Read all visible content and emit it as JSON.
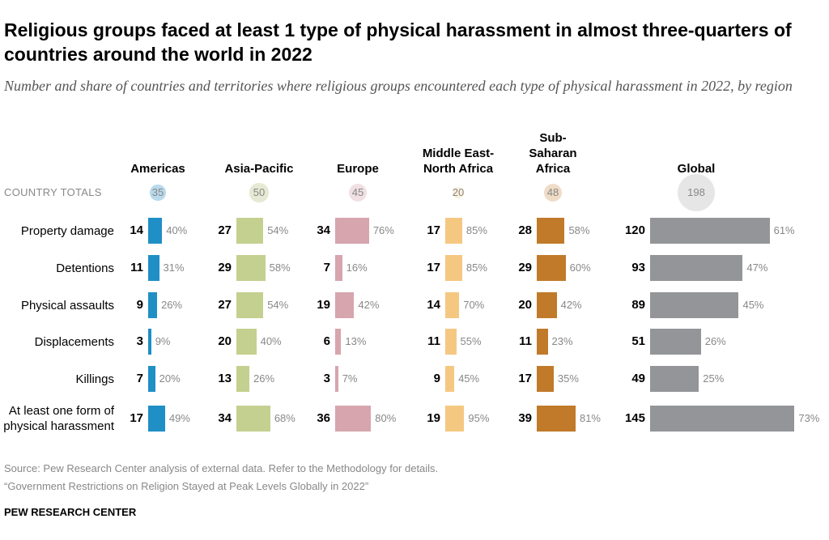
{
  "chart_data": {
    "type": "bar",
    "title": "Religious groups faced at least 1 type of physical harassment in almost three-quarters of countries around the world in 2022",
    "subtitle": "Number and share of countries and territories where religious groups encountered each type of physical harassment in 2022, by region",
    "totals_label": "COUNTRY TOTALS",
    "categories": [
      "Property damage",
      "Detentions",
      "Physical assaults",
      "Displacements",
      "Killings",
      "At least one form of physical harassment"
    ],
    "series": [
      {
        "name": "Americas",
        "color": "#1f8fc6",
        "total": 35,
        "total_color": "#b9d9ec",
        "values": [
          14,
          11,
          9,
          3,
          7,
          17
        ],
        "share_labels": [
          "40%",
          "31%",
          "26%",
          "9%",
          "20%",
          "49%"
        ]
      },
      {
        "name": "Asia-Pacific",
        "color": "#c4d08f",
        "total": 50,
        "total_color": "#e6e9d3",
        "values": [
          27,
          29,
          27,
          20,
          13,
          34
        ],
        "share_labels": [
          "54%",
          "58%",
          "54%",
          "40%",
          "26%",
          "68%"
        ]
      },
      {
        "name": "Europe",
        "color": "#d6a5ae",
        "total": 45,
        "total_color": "#f0e0e3",
        "values": [
          34,
          7,
          19,
          6,
          3,
          36
        ],
        "share_labels": [
          "76%",
          "16%",
          "42%",
          "13%",
          "7%",
          "80%"
        ]
      },
      {
        "name": "Middle East-North Africa",
        "color": "#f5c882",
        "total": 20,
        "total_color": "#fcf0dc",
        "values": [
          17,
          17,
          14,
          11,
          9,
          19
        ],
        "share_labels": [
          "85%",
          "85%",
          "70%",
          "55%",
          "45%",
          "95%"
        ]
      },
      {
        "name": "Sub-Saharan Africa",
        "color": "#c07a2a",
        "total": 48,
        "total_color": "#efdcc7",
        "values": [
          28,
          29,
          20,
          11,
          17,
          39
        ],
        "share_labels": [
          "58%",
          "60%",
          "42%",
          "23%",
          "35%",
          "81%"
        ]
      },
      {
        "name": "Global",
        "color": "#939598",
        "total": 198,
        "total_color": "#e6e6e6",
        "values": [
          120,
          93,
          89,
          51,
          49,
          145
        ],
        "share_labels": [
          "61%",
          "47%",
          "45%",
          "26%",
          "25%",
          "73%"
        ]
      }
    ],
    "source": "Source: Pew Research Center analysis of external data. Refer to the Methodology for details.",
    "note": "“Government Restrictions on Religion Stayed at Peak Levels Globally in 2022”",
    "footer": "PEW RESEARCH CENTER"
  }
}
